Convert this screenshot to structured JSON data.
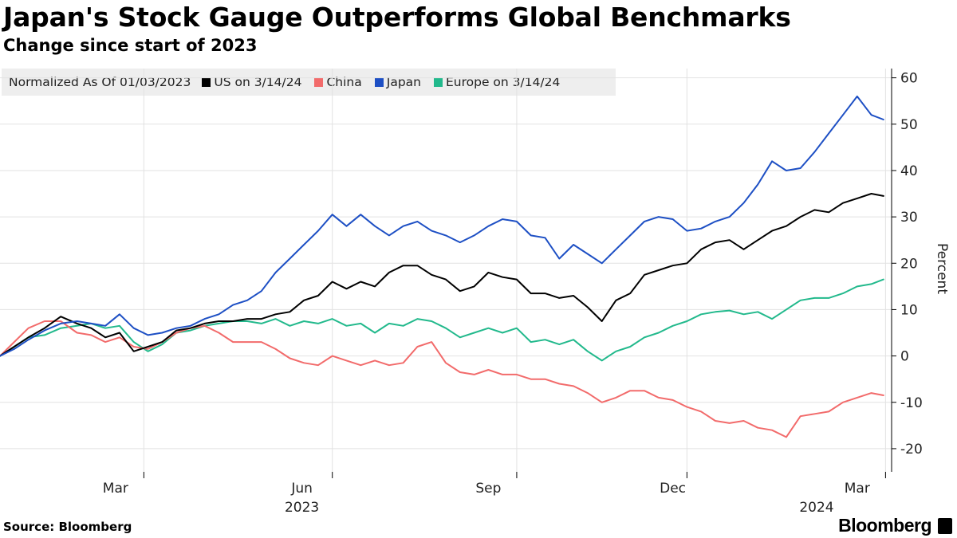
{
  "header": {
    "title": "Japan's Stock Gauge Outperforms Global Benchmarks",
    "subtitle": "Change since start of 2023"
  },
  "legend": {
    "title": "Normalized As Of 01/03/2023",
    "items": [
      {
        "label": "US on 3/14/24",
        "color": "#000000"
      },
      {
        "label": "China",
        "color": "#f26b6b"
      },
      {
        "label": "Japan",
        "color": "#1d4fc4"
      },
      {
        "label": "Europe on 3/14/24",
        "color": "#22b98c"
      }
    ]
  },
  "footer": {
    "source": "Source: Bloomberg",
    "brand": "Bloomberg"
  },
  "chart_data": {
    "type": "line",
    "ylabel": "Percent",
    "ylim": [
      -25,
      62
    ],
    "yticks": [
      -20,
      -10,
      0,
      10,
      20,
      30,
      40,
      50,
      60
    ],
    "xlim": [
      "2023-01-03",
      "2024-03-18"
    ],
    "month_ticks": [
      "Mar",
      "Jun",
      "Sep",
      "Dec",
      "Mar"
    ],
    "month_tick_dates": [
      "2023-03-01",
      "2023-06-01",
      "2023-09-01",
      "2023-12-01",
      "2024-03-01"
    ],
    "year_labels": [
      "2023",
      "2024"
    ],
    "year_label_dates": [
      "2023-06-01",
      "2024-02-10"
    ],
    "year_boundary_dates": [
      "2023-03-15",
      "2023-06-16",
      "2023-09-15",
      "2023-12-08",
      "2024-03-15"
    ],
    "grid": true,
    "series": [
      {
        "name": "US on 3/14/24",
        "color": "#000000",
        "points": [
          [
            "2023-01-03",
            0
          ],
          [
            "2023-01-10",
            2
          ],
          [
            "2023-01-17",
            4
          ],
          [
            "2023-01-25",
            6
          ],
          [
            "2023-02-02",
            8.5
          ],
          [
            "2023-02-10",
            7
          ],
          [
            "2023-02-17",
            6
          ],
          [
            "2023-02-24",
            4
          ],
          [
            "2023-03-03",
            5
          ],
          [
            "2023-03-10",
            1
          ],
          [
            "2023-03-17",
            2
          ],
          [
            "2023-03-24",
            3
          ],
          [
            "2023-03-31",
            5.5
          ],
          [
            "2023-04-07",
            6
          ],
          [
            "2023-04-14",
            7
          ],
          [
            "2023-04-21",
            7.5
          ],
          [
            "2023-04-28",
            7.5
          ],
          [
            "2023-05-05",
            8
          ],
          [
            "2023-05-12",
            8
          ],
          [
            "2023-05-19",
            9
          ],
          [
            "2023-05-26",
            9.5
          ],
          [
            "2023-06-02",
            12
          ],
          [
            "2023-06-09",
            13
          ],
          [
            "2023-06-16",
            16
          ],
          [
            "2023-06-23",
            14.5
          ],
          [
            "2023-06-30",
            16
          ],
          [
            "2023-07-07",
            15
          ],
          [
            "2023-07-14",
            18
          ],
          [
            "2023-07-21",
            19.5
          ],
          [
            "2023-07-28",
            19.5
          ],
          [
            "2023-08-04",
            17.5
          ],
          [
            "2023-08-11",
            16.5
          ],
          [
            "2023-08-18",
            14
          ],
          [
            "2023-08-25",
            15
          ],
          [
            "2023-09-01",
            18
          ],
          [
            "2023-09-08",
            17
          ],
          [
            "2023-09-15",
            16.5
          ],
          [
            "2023-09-22",
            13.5
          ],
          [
            "2023-09-29",
            13.5
          ],
          [
            "2023-10-06",
            12.5
          ],
          [
            "2023-10-13",
            13
          ],
          [
            "2023-10-20",
            10.5
          ],
          [
            "2023-10-27",
            7.5
          ],
          [
            "2023-11-03",
            12
          ],
          [
            "2023-11-10",
            13.5
          ],
          [
            "2023-11-17",
            17.5
          ],
          [
            "2023-11-24",
            18.5
          ],
          [
            "2023-12-01",
            19.5
          ],
          [
            "2023-12-08",
            20
          ],
          [
            "2023-12-15",
            23
          ],
          [
            "2023-12-22",
            24.5
          ],
          [
            "2023-12-29",
            25
          ],
          [
            "2024-01-05",
            23
          ],
          [
            "2024-01-12",
            25
          ],
          [
            "2024-01-19",
            27
          ],
          [
            "2024-01-26",
            28
          ],
          [
            "2024-02-02",
            30
          ],
          [
            "2024-02-09",
            31.5
          ],
          [
            "2024-02-16",
            31
          ],
          [
            "2024-02-23",
            33
          ],
          [
            "2024-03-01",
            34
          ],
          [
            "2024-03-08",
            35
          ],
          [
            "2024-03-14",
            34.5
          ]
        ]
      },
      {
        "name": "China",
        "color": "#f26b6b",
        "points": [
          [
            "2023-01-03",
            0
          ],
          [
            "2023-01-10",
            3
          ],
          [
            "2023-01-17",
            6
          ],
          [
            "2023-01-25",
            7.5
          ],
          [
            "2023-02-02",
            7.5
          ],
          [
            "2023-02-10",
            5
          ],
          [
            "2023-02-17",
            4.5
          ],
          [
            "2023-02-24",
            3
          ],
          [
            "2023-03-03",
            4
          ],
          [
            "2023-03-10",
            2
          ],
          [
            "2023-03-17",
            1.5
          ],
          [
            "2023-03-24",
            3
          ],
          [
            "2023-03-31",
            5
          ],
          [
            "2023-04-07",
            6
          ],
          [
            "2023-04-14",
            6.5
          ],
          [
            "2023-04-21",
            5
          ],
          [
            "2023-04-28",
            3
          ],
          [
            "2023-05-05",
            3
          ],
          [
            "2023-05-12",
            3
          ],
          [
            "2023-05-19",
            1.5
          ],
          [
            "2023-05-26",
            -0.5
          ],
          [
            "2023-06-02",
            -1.5
          ],
          [
            "2023-06-09",
            -2
          ],
          [
            "2023-06-16",
            0
          ],
          [
            "2023-06-23",
            -1
          ],
          [
            "2023-06-30",
            -2
          ],
          [
            "2023-07-07",
            -1
          ],
          [
            "2023-07-14",
            -2
          ],
          [
            "2023-07-21",
            -1.5
          ],
          [
            "2023-07-28",
            2
          ],
          [
            "2023-08-04",
            3
          ],
          [
            "2023-08-11",
            -1.5
          ],
          [
            "2023-08-18",
            -3.5
          ],
          [
            "2023-08-25",
            -4
          ],
          [
            "2023-09-01",
            -3
          ],
          [
            "2023-09-08",
            -4
          ],
          [
            "2023-09-15",
            -4
          ],
          [
            "2023-09-22",
            -5
          ],
          [
            "2023-09-29",
            -5
          ],
          [
            "2023-10-06",
            -6
          ],
          [
            "2023-10-13",
            -6.5
          ],
          [
            "2023-10-20",
            -8
          ],
          [
            "2023-10-27",
            -10
          ],
          [
            "2023-11-03",
            -9
          ],
          [
            "2023-11-10",
            -7.5
          ],
          [
            "2023-11-17",
            -7.5
          ],
          [
            "2023-11-24",
            -9
          ],
          [
            "2023-12-01",
            -9.5
          ],
          [
            "2023-12-08",
            -11
          ],
          [
            "2023-12-15",
            -12
          ],
          [
            "2023-12-22",
            -14
          ],
          [
            "2023-12-29",
            -14.5
          ],
          [
            "2024-01-05",
            -14
          ],
          [
            "2024-01-12",
            -15.5
          ],
          [
            "2024-01-19",
            -16
          ],
          [
            "2024-01-26",
            -17.5
          ],
          [
            "2024-02-02",
            -13
          ],
          [
            "2024-02-09",
            -12.5
          ],
          [
            "2024-02-16",
            -12
          ],
          [
            "2024-02-23",
            -10
          ],
          [
            "2024-03-01",
            -9
          ],
          [
            "2024-03-08",
            -8
          ],
          [
            "2024-03-14",
            -8.5
          ]
        ]
      },
      {
        "name": "Japan",
        "color": "#1d4fc4",
        "points": [
          [
            "2023-01-03",
            0
          ],
          [
            "2023-01-10",
            1.5
          ],
          [
            "2023-01-17",
            3.5
          ],
          [
            "2023-01-25",
            5.5
          ],
          [
            "2023-02-02",
            7
          ],
          [
            "2023-02-10",
            7.5
          ],
          [
            "2023-02-17",
            7
          ],
          [
            "2023-02-24",
            6.5
          ],
          [
            "2023-03-03",
            9
          ],
          [
            "2023-03-10",
            6
          ],
          [
            "2023-03-17",
            4.5
          ],
          [
            "2023-03-24",
            5
          ],
          [
            "2023-03-31",
            6
          ],
          [
            "2023-04-07",
            6.5
          ],
          [
            "2023-04-14",
            8
          ],
          [
            "2023-04-21",
            9
          ],
          [
            "2023-04-28",
            11
          ],
          [
            "2023-05-05",
            12
          ],
          [
            "2023-05-12",
            14
          ],
          [
            "2023-05-19",
            18
          ],
          [
            "2023-05-26",
            21
          ],
          [
            "2023-06-02",
            24
          ],
          [
            "2023-06-09",
            27
          ],
          [
            "2023-06-16",
            30.5
          ],
          [
            "2023-06-23",
            28
          ],
          [
            "2023-06-30",
            30.5
          ],
          [
            "2023-07-07",
            28
          ],
          [
            "2023-07-14",
            26
          ],
          [
            "2023-07-21",
            28
          ],
          [
            "2023-07-28",
            29
          ],
          [
            "2023-08-04",
            27
          ],
          [
            "2023-08-11",
            26
          ],
          [
            "2023-08-18",
            24.5
          ],
          [
            "2023-08-25",
            26
          ],
          [
            "2023-09-01",
            28
          ],
          [
            "2023-09-08",
            29.5
          ],
          [
            "2023-09-15",
            29
          ],
          [
            "2023-09-22",
            26
          ],
          [
            "2023-09-29",
            25.5
          ],
          [
            "2023-10-06",
            21
          ],
          [
            "2023-10-13",
            24
          ],
          [
            "2023-10-20",
            22
          ],
          [
            "2023-10-27",
            20
          ],
          [
            "2023-11-03",
            23
          ],
          [
            "2023-11-10",
            26
          ],
          [
            "2023-11-17",
            29
          ],
          [
            "2023-11-24",
            30
          ],
          [
            "2023-12-01",
            29.5
          ],
          [
            "2023-12-08",
            27
          ],
          [
            "2023-12-15",
            27.5
          ],
          [
            "2023-12-22",
            29
          ],
          [
            "2023-12-29",
            30
          ],
          [
            "2024-01-05",
            33
          ],
          [
            "2024-01-12",
            37
          ],
          [
            "2024-01-19",
            42
          ],
          [
            "2024-01-26",
            40
          ],
          [
            "2024-02-02",
            40.5
          ],
          [
            "2024-02-09",
            44
          ],
          [
            "2024-02-16",
            48
          ],
          [
            "2024-02-23",
            52
          ],
          [
            "2024-03-01",
            56
          ],
          [
            "2024-03-08",
            52
          ],
          [
            "2024-03-14",
            51
          ]
        ]
      },
      {
        "name": "Europe on 3/14/24",
        "color": "#22b98c",
        "points": [
          [
            "2023-01-03",
            0
          ],
          [
            "2023-01-10",
            2
          ],
          [
            "2023-01-17",
            4
          ],
          [
            "2023-01-25",
            4.5
          ],
          [
            "2023-02-02",
            6
          ],
          [
            "2023-02-10",
            6.5
          ],
          [
            "2023-02-17",
            7
          ],
          [
            "2023-02-24",
            6
          ],
          [
            "2023-03-03",
            6.5
          ],
          [
            "2023-03-10",
            3
          ],
          [
            "2023-03-17",
            1
          ],
          [
            "2023-03-24",
            2.5
          ],
          [
            "2023-03-31",
            5
          ],
          [
            "2023-04-07",
            5.5
          ],
          [
            "2023-04-14",
            6.5
          ],
          [
            "2023-04-21",
            7
          ],
          [
            "2023-04-28",
            7.5
          ],
          [
            "2023-05-05",
            7.5
          ],
          [
            "2023-05-12",
            7
          ],
          [
            "2023-05-19",
            8
          ],
          [
            "2023-05-26",
            6.5
          ],
          [
            "2023-06-02",
            7.5
          ],
          [
            "2023-06-09",
            7
          ],
          [
            "2023-06-16",
            8
          ],
          [
            "2023-06-23",
            6.5
          ],
          [
            "2023-06-30",
            7
          ],
          [
            "2023-07-07",
            5
          ],
          [
            "2023-07-14",
            7
          ],
          [
            "2023-07-21",
            6.5
          ],
          [
            "2023-07-28",
            8
          ],
          [
            "2023-08-04",
            7.5
          ],
          [
            "2023-08-11",
            6
          ],
          [
            "2023-08-18",
            4
          ],
          [
            "2023-08-25",
            5
          ],
          [
            "2023-09-01",
            6
          ],
          [
            "2023-09-08",
            5
          ],
          [
            "2023-09-15",
            6
          ],
          [
            "2023-09-22",
            3
          ],
          [
            "2023-09-29",
            3.5
          ],
          [
            "2023-10-06",
            2.5
          ],
          [
            "2023-10-13",
            3.5
          ],
          [
            "2023-10-20",
            1
          ],
          [
            "2023-10-27",
            -1
          ],
          [
            "2023-11-03",
            1
          ],
          [
            "2023-11-10",
            2
          ],
          [
            "2023-11-17",
            4
          ],
          [
            "2023-11-24",
            5
          ],
          [
            "2023-12-01",
            6.5
          ],
          [
            "2023-12-08",
            7.5
          ],
          [
            "2023-12-15",
            9
          ],
          [
            "2023-12-22",
            9.5
          ],
          [
            "2023-12-29",
            9.8
          ],
          [
            "2024-01-05",
            9
          ],
          [
            "2024-01-12",
            9.5
          ],
          [
            "2024-01-19",
            8
          ],
          [
            "2024-01-26",
            10
          ],
          [
            "2024-02-02",
            12
          ],
          [
            "2024-02-09",
            12.5
          ],
          [
            "2024-02-16",
            12.5
          ],
          [
            "2024-02-23",
            13.5
          ],
          [
            "2024-03-01",
            15
          ],
          [
            "2024-03-08",
            15.5
          ],
          [
            "2024-03-14",
            16.5
          ]
        ]
      }
    ]
  }
}
